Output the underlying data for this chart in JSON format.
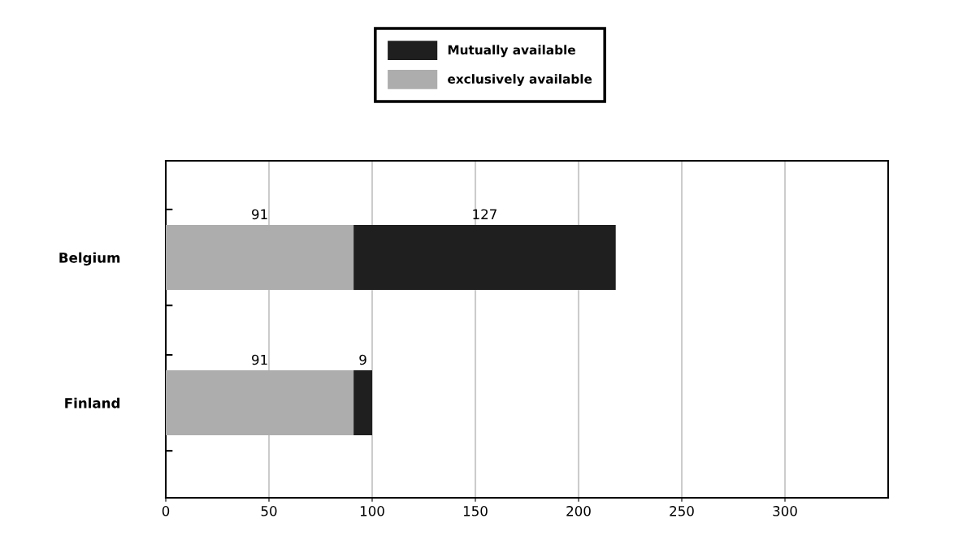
{
  "chart_data": {
    "type": "bar",
    "orientation": "horizontal",
    "stacked": true,
    "categories": [
      "Belgium",
      "Finland"
    ],
    "series": [
      {
        "name": "exclusively available",
        "color": "#adadad",
        "values": [
          91,
          91
        ]
      },
      {
        "name": "Mutually available",
        "color": "#1f1f1f",
        "values": [
          127,
          9
        ]
      }
    ],
    "xlim": [
      0,
      350
    ],
    "xticks": [
      0,
      50,
      100,
      150,
      200,
      250,
      300
    ],
    "grid": "x",
    "legend": "top",
    "data_labels": true
  }
}
